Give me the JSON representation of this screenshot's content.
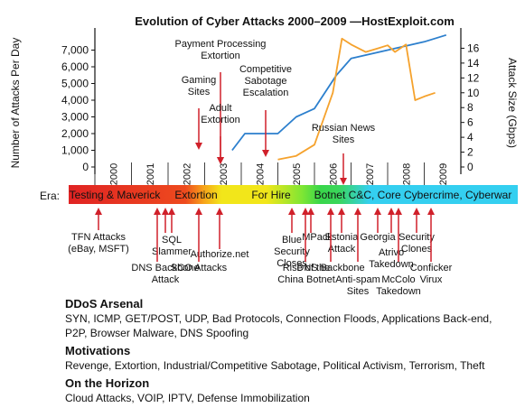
{
  "chart_data": {
    "type": "line",
    "title": "Evolution of Cyber Attacks 2000–2009 —HostExploit.com",
    "ylabel": "Number of Attacks Per Day",
    "y2label": "Attack Size (Gbps)",
    "xlim": [
      2000,
      2010
    ],
    "ylim": [
      0,
      8000
    ],
    "y2lim": [
      0,
      18
    ],
    "yticks": [
      "0",
      "1,000",
      "2,000",
      "3,000",
      "4,000",
      "5,000",
      "6,000",
      "7,000"
    ],
    "y2ticks": [
      "0",
      "2",
      "4",
      "6",
      "8",
      "10",
      "12",
      "14",
      "16"
    ],
    "xticks": [
      "2000",
      "2001",
      "2002",
      "2003",
      "2004",
      "2005",
      "2006",
      "2007",
      "2008",
      "2009"
    ],
    "grid": false,
    "series": [
      {
        "axis": "left",
        "color": "#2c7fcd",
        "x": [
          2003.75,
          2004.1,
          2004.5,
          2005.0,
          2005.5,
          2006.0,
          2006.6,
          2007.0,
          2008.0,
          2009.0,
          2009.6
        ],
        "y": [
          1000,
          2000,
          2000,
          2000,
          3000,
          3500,
          5500,
          6500,
          7000,
          7500,
          7900
        ]
      },
      {
        "axis": "right",
        "color": "#f5a22d",
        "x": [
          2005.0,
          2005.5,
          2006.0,
          2006.5,
          2006.75,
          2007.0,
          2007.4,
          2007.75,
          2008.0,
          2008.2,
          2008.5,
          2008.75,
          2009.0,
          2009.3
        ],
        "y": [
          1,
          1.5,
          3,
          10,
          17.3,
          16.5,
          15.5,
          16,
          16.4,
          15.5,
          16.5,
          9.0,
          9.5,
          10
        ]
      }
    ],
    "annotations": [
      {
        "label": "Gaming Sites",
        "x": 2003.8
      },
      {
        "label": "Payment Processing Extortion",
        "x": 2004.3
      },
      {
        "label": "Adult Extortion",
        "x": 2004.25
      },
      {
        "label": "Competitive Sabotage Escalation",
        "x": 2005.6
      },
      {
        "label": "Russian News Sites",
        "x": 2007.6
      }
    ]
  },
  "era": {
    "label": "Era:",
    "segments": [
      {
        "label": "Testing & Maverick",
        "color": "#e02323"
      },
      {
        "label": "Extortion",
        "color": "#f2e61a"
      },
      {
        "label": "For Hire",
        "color": "#39d64a"
      },
      {
        "label": "Botnet C&C, Core Cybercrime, Cyberwar",
        "color": "#34cff0"
      }
    ]
  },
  "events": [
    {
      "label": "TFN Attacks (eBay, MSFT)",
      "pos": "low"
    },
    {
      "label": "DNS Backbone Attack",
      "pos": "high"
    },
    {
      "label": "SQL Slammer",
      "pos": "mid"
    },
    {
      "label": "SCO Attacks",
      "pos": "high"
    },
    {
      "label": "Authorize.net",
      "pos": "mid"
    },
    {
      "label": "Blue Security Closes",
      "pos": "low"
    },
    {
      "label": "Rise of the China Botnet",
      "pos": "high"
    },
    {
      "label": "MPack",
      "pos": "low"
    },
    {
      "label": "DNS Backbone",
      "pos": "high"
    },
    {
      "label": "Estonia Attack",
      "pos": "low"
    },
    {
      "label": "Anti-spam Sites",
      "pos": "high"
    },
    {
      "label": "Georgia",
      "pos": "low"
    },
    {
      "label": "Atrivo Takedown",
      "pos": "mid"
    },
    {
      "label": "McColo Takedown",
      "pos": "high"
    },
    {
      "label": "Security Clones",
      "pos": "low"
    },
    {
      "label": "Conficker Virux",
      "pos": "high"
    }
  ],
  "sections": [
    {
      "title": "DDoS Arsenal",
      "lines": [
        "SYN, ICMP, GET/POST, UDP, Bad Protocols, Connection Floods, Applications Back-end,",
        "P2P, Browser Malware, DNS Spoofing"
      ]
    },
    {
      "title": "Motivations",
      "lines": [
        "Revenge, Extortion, Industrial/Competitive Sabotage, Political Activism, Terrorism, Theft"
      ]
    },
    {
      "title": "On the Horizon",
      "lines": [
        "Cloud Attacks, VOIP, IPTV, Defense Immobilization"
      ]
    }
  ]
}
